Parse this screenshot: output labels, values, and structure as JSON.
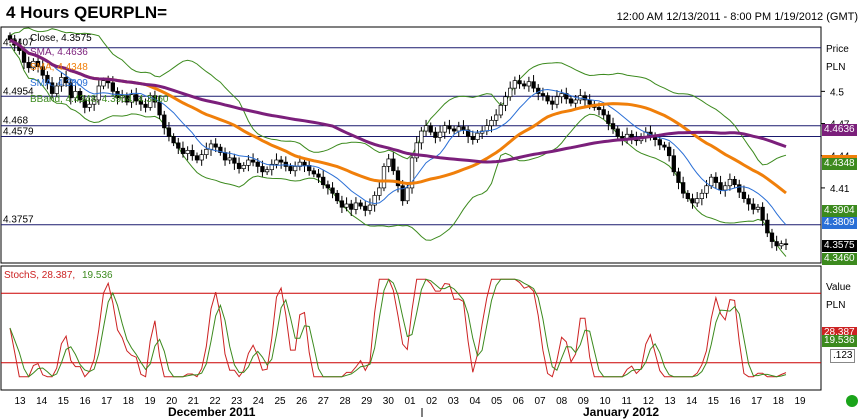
{
  "header": {
    "title": "4 Hours QEURPLN=",
    "range": "12:00 AM 12/13/2011 - 8:00 PM 1/19/2012 (GMT)"
  },
  "colors": {
    "sma1": "#7b1f7b",
    "sma2": "#f07f0a",
    "sma3": "#2a6fd6",
    "bband": "#3c8a1e",
    "stoch_k": "#cc2222",
    "stoch_d": "#3c8a1e",
    "hline": "#1a1a6e",
    "red_line": "#cc0000"
  },
  "legend": {
    "close": "Close, 4.3575",
    "sma1": "SMA, 4.4636",
    "sma2": "SMA, 4.4348",
    "sma3": "SMA, 4.3809",
    "bband": "BBand, 4.4348, 4.3904, 4.3460",
    "stoch_k": "StochS, 28.387,",
    "stoch_d": "19.536"
  },
  "axes": {
    "price_title": "Price",
    "price_unit": "PLN",
    "value_title": "Value",
    "value_unit": "PLN",
    "month_dec": "December 2011",
    "month_jan": "January 2012"
  },
  "tags": {
    "sma1": "4.4636",
    "bb_upper": "4.4348",
    "bb_mid": "4.3904",
    "sma3": "4.3809",
    "close": "4.3575",
    "bb_lower": "4.3460",
    "stoch_k": "28.387",
    "stoch_d": "19.536",
    "stoch_misc": ".123"
  },
  "levels": [
    {
      "label": "4.5407",
      "value": 4.5407
    },
    {
      "label": "4.4954",
      "value": 4.4954
    },
    {
      "label": "4.468",
      "value": 4.468
    },
    {
      "label": "4.4579",
      "value": 4.4579
    },
    {
      "label": "4.3757",
      "value": 4.3757
    }
  ],
  "chart_data": {
    "type": "candlestick",
    "title": "4 Hours QEURPLN=",
    "price_range": [
      4.34,
      4.56
    ],
    "price_ticks": [
      {
        "label": "4.5",
        "value": 4.5
      },
      {
        "label": "4.47",
        "value": 4.47
      },
      {
        "label": "4.44",
        "value": 4.44
      },
      {
        "label": "4.41",
        "value": 4.41
      }
    ],
    "stoch_range": [
      0,
      100
    ],
    "stoch_levels": [
      80,
      20
    ],
    "x_ticks": [
      "13",
      "14",
      "15",
      "16",
      "17",
      "18",
      "19",
      "20",
      "21",
      "22",
      "23",
      "24",
      "25",
      "26",
      "27",
      "28",
      "29",
      "30",
      "01",
      "02",
      "03",
      "04",
      "05",
      "06",
      "07",
      "08",
      "09",
      "10",
      "11",
      "12",
      "13",
      "14",
      "15",
      "16",
      "17",
      "18",
      "19"
    ],
    "close_series": [
      4.548,
      4.543,
      4.538,
      4.527,
      4.522,
      4.528,
      4.523,
      4.515,
      4.508,
      4.498,
      4.505,
      4.513,
      4.508,
      4.494,
      4.5,
      4.492,
      4.485,
      4.488,
      4.492,
      4.505,
      4.51,
      4.508,
      4.5,
      4.494,
      4.496,
      4.49,
      4.497,
      4.491,
      4.488,
      4.485,
      4.496,
      4.49,
      4.478,
      4.466,
      4.458,
      4.452,
      4.447,
      4.442,
      4.445,
      4.44,
      4.436,
      4.441,
      4.446,
      4.451,
      4.448,
      4.443,
      4.436,
      4.438,
      4.433,
      4.428,
      4.431,
      4.436,
      4.434,
      4.43,
      4.425,
      4.427,
      4.432,
      4.436,
      4.434,
      4.43,
      4.426,
      4.43,
      4.434,
      4.431,
      4.426,
      4.423,
      4.42,
      4.413,
      4.41,
      4.405,
      4.398,
      4.392,
      4.395,
      4.39,
      4.396,
      4.393,
      4.389,
      4.394,
      4.403,
      4.41,
      4.43,
      4.437,
      4.426,
      4.412,
      4.398,
      4.41,
      4.438,
      4.452,
      4.463,
      4.468,
      4.462,
      4.457,
      4.462,
      4.468,
      4.465,
      4.463,
      4.467,
      4.464,
      4.458,
      4.455,
      4.461,
      4.463,
      4.468,
      4.473,
      4.478,
      4.487,
      4.495,
      4.503,
      4.51,
      4.507,
      4.505,
      4.509,
      4.503,
      4.498,
      4.496,
      4.491,
      4.488,
      4.495,
      4.498,
      4.493,
      4.489,
      4.492,
      4.496,
      4.492,
      4.488,
      4.485,
      4.483,
      4.478,
      4.47,
      4.465,
      4.458,
      4.455,
      4.46,
      4.457,
      4.454,
      4.458,
      4.462,
      4.458,
      4.455,
      4.45,
      4.448,
      4.44,
      4.425,
      4.415,
      4.405,
      4.4,
      4.396,
      4.4,
      4.405,
      4.412,
      4.42,
      4.415,
      4.408,
      4.412,
      4.418,
      4.413,
      4.406,
      4.4,
      4.395,
      4.39,
      4.392,
      4.38,
      4.368,
      4.36,
      4.356,
      4.358,
      4.3575
    ]
  }
}
